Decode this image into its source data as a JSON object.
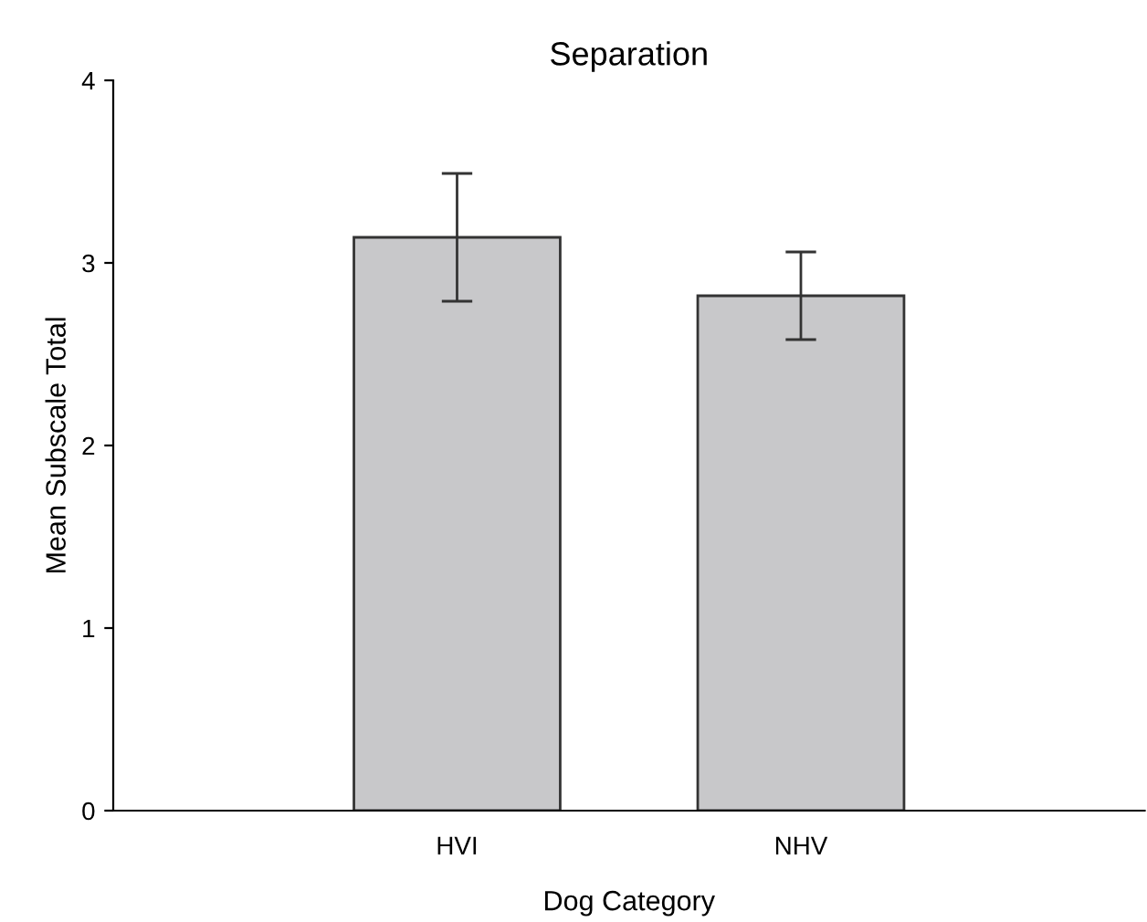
{
  "chart_data": {
    "type": "bar",
    "title": "Separation",
    "xlabel": "Dog Category",
    "ylabel": "Mean Subscale Total",
    "categories": [
      "HVI",
      "NHV"
    ],
    "series": [
      {
        "color": "#c8c8ca",
        "values": [
          3.14,
          2.82
        ],
        "errors": [
          0.35,
          0.24
        ]
      }
    ],
    "ylim": [
      0,
      4
    ],
    "yticks": [
      0,
      1,
      2,
      3,
      4
    ],
    "grid": false,
    "legend": false
  }
}
